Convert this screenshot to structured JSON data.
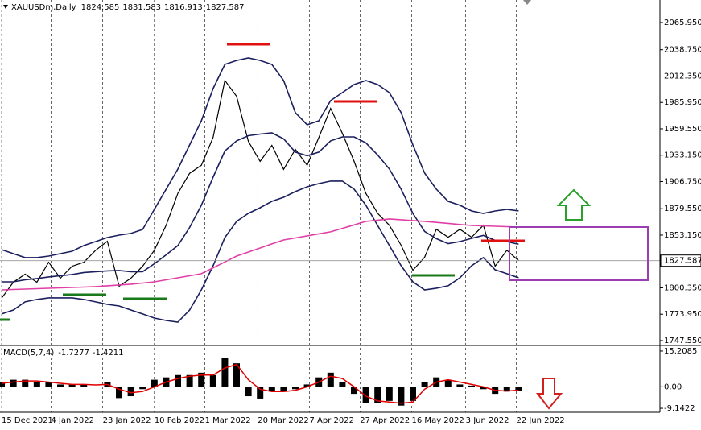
{
  "chart_data": [
    {
      "type": "line",
      "title": "XAUUSDm,Daily",
      "ohlc": [
        1824.585,
        1831.583,
        1816.913,
        1827.587
      ],
      "x": [
        0,
        1,
        2,
        3,
        4,
        5,
        6,
        7,
        8,
        9,
        10,
        11,
        12,
        13,
        14,
        15,
        16,
        17,
        18,
        19,
        20,
        21,
        22,
        23,
        24,
        25,
        26,
        27,
        28,
        29,
        30,
        31,
        32,
        33,
        34,
        35,
        36,
        37,
        38,
        39,
        40,
        41,
        42,
        43,
        44
      ],
      "xlim": [
        -0.14,
        56.03
      ],
      "xticks": [
        {
          "value": 0,
          "label": "15 Dec 2021"
        },
        {
          "value": 4.2,
          "label": "4 Jan 2022"
        },
        {
          "value": 8.6,
          "label": "23 Jan 2022"
        },
        {
          "value": 13,
          "label": "10 Feb 2022"
        },
        {
          "value": 17.3,
          "label": "1 Mar 2022"
        },
        {
          "value": 21.8,
          "label": "20 Mar 2022"
        },
        {
          "value": 26.2,
          "label": "7 Apr 2022"
        },
        {
          "value": 30.5,
          "label": "27 Apr 2022"
        },
        {
          "value": 34.9,
          "label": "16 May 2022"
        },
        {
          "value": 39.5,
          "label": "3 Jun 2022"
        },
        {
          "value": 43.8,
          "label": "22 Jun 2022"
        }
      ],
      "ylim": [
        1743.5,
        2088.5
      ],
      "yticks": [
        {
          "value": 2065.95,
          "label": "2065.950"
        },
        {
          "value": 2038.75,
          "label": "2038.750"
        },
        {
          "value": 2012.35,
          "label": "2012.350"
        },
        {
          "value": 1985.95,
          "label": "1985.950"
        },
        {
          "value": 1959.55,
          "label": "1959.550"
        },
        {
          "value": 1933.15,
          "label": "1933.150"
        },
        {
          "value": 1906.75,
          "label": "1906.750"
        },
        {
          "value": 1879.55,
          "label": "1879.550"
        },
        {
          "value": 1853.15,
          "label": "1853.150"
        },
        {
          "value": 1800.35,
          "label": "1800.350"
        },
        {
          "value": 1773.95,
          "label": "1773.950"
        },
        {
          "value": 1747.55,
          "label": "1747.550"
        }
      ],
      "grid": true,
      "series": [
        {
          "color": "#000000",
          "values": [
            1790,
            1806,
            1814,
            1806,
            1826,
            1810,
            1822,
            1826,
            1838,
            1847,
            1802,
            1810,
            1822,
            1838,
            1863,
            1895,
            1915,
            1923,
            1951,
            2008,
            1992,
            1947,
            1927,
            1943,
            1919,
            1939,
            1923,
            1951,
            1980,
            1955,
            1927,
            1895,
            1875,
            1863,
            1843,
            1818,
            1831,
            1859,
            1851,
            1859,
            1851,
            1863,
            1822,
            1838,
            1827.587
          ]
        },
        {
          "color": "#1b1f5e",
          "values": [
            1838.6,
            1834.6,
            1830.6,
            1830.6,
            1832.2,
            1834.6,
            1837.0,
            1842.7,
            1846.7,
            1850.7,
            1853.1,
            1854.8,
            1858.8,
            1878.9,
            1899.1,
            1919.2,
            1943.4,
            1967.6,
            1999.8,
            2024.0,
            2028.0,
            2030.5,
            2028.0,
            2024.0,
            2007.9,
            1975.7,
            1963.6,
            1967.6,
            1987.8,
            1995.8,
            2003.9,
            2007.9,
            2003.9,
            1995.8,
            1975.7,
            1943.4,
            1915.2,
            1899.1,
            1887.0,
            1883.0,
            1877.3,
            1874.9,
            1877.3,
            1878.9,
            1877.3
          ]
        },
        {
          "color": "#1b1f5e",
          "values": [
            1806.4,
            1806.4,
            1808.5,
            1809.7,
            1811.3,
            1812.5,
            1813.7,
            1815.7,
            1816.5,
            1817.3,
            1817.7,
            1816.5,
            1816.5,
            1824.5,
            1833.4,
            1842.7,
            1860.8,
            1883.0,
            1911.2,
            1937.4,
            1947.5,
            1952.7,
            1954.3,
            1955.5,
            1949.5,
            1936.2,
            1932.6,
            1936.2,
            1947.5,
            1951.5,
            1951.5,
            1945.5,
            1933.4,
            1919.3,
            1899.1,
            1874.9,
            1856.8,
            1849.6,
            1844.7,
            1846.7,
            1849.9,
            1852.8,
            1847.9,
            1846.7,
            1843.9
          ]
        },
        {
          "color": "#1b1f5e",
          "values": [
            1774.2,
            1778.2,
            1786.3,
            1788.7,
            1790.3,
            1790.3,
            1790.3,
            1788.7,
            1786.3,
            1783.8,
            1782.2,
            1778.2,
            1774.2,
            1770.1,
            1767.7,
            1766.1,
            1778.2,
            1798.3,
            1822.5,
            1850.7,
            1866.9,
            1874.9,
            1880.5,
            1887.0,
            1891.0,
            1896.7,
            1901.5,
            1904.7,
            1907.2,
            1907.2,
            1899.1,
            1883.0,
            1862.8,
            1842.7,
            1822.5,
            1806.4,
            1798.3,
            1800.0,
            1802.4,
            1810.4,
            1822.5,
            1830.6,
            1818.5,
            1814.5,
            1810.4
          ]
        },
        {
          "color": "#e03fa6",
          "values": [
            1798.3,
            1798.7,
            1799.1,
            1799.5,
            1799.9,
            1800.3,
            1800.7,
            1801.1,
            1801.6,
            1802.4,
            1803.2,
            1804.0,
            1805.2,
            1806.4,
            1808.4,
            1810.4,
            1812.4,
            1814.5,
            1820.4,
            1826.3,
            1832.2,
            1836.2,
            1840.2,
            1844.3,
            1848.3,
            1850.3,
            1852.4,
            1854.4,
            1856.4,
            1859.9,
            1863.4,
            1866.9,
            1868.1,
            1869.3,
            1868.5,
            1867.7,
            1866.9,
            1865.9,
            1864.9,
            1863.8,
            1862.8,
            1862.4,
            1862.0,
            1861.6,
            1861.2
          ]
        }
      ]
    },
    {
      "type": "macd",
      "title": "MACD(5,7,4)",
      "x": [
        0,
        1,
        2,
        3,
        4,
        5,
        6,
        7,
        8,
        9,
        10,
        11,
        12,
        13,
        14,
        15,
        16,
        17,
        18,
        19,
        20,
        21,
        22,
        23,
        24,
        25,
        26,
        27,
        28,
        29,
        30,
        31,
        32,
        33,
        34,
        35,
        36,
        37,
        38,
        39,
        40,
        41,
        42,
        43,
        44
      ],
      "xlim": [
        -0.14,
        56.03
      ],
      "ylim": [
        -10.84,
        17.25
      ],
      "yticks": [
        15.2085,
        {
          "value": 0,
          "label": "0.00"
        },
        -9.1422
      ],
      "histogram": {
        "color": "#000000",
        "values": [
          2,
          3,
          3,
          2,
          2,
          1,
          1,
          1,
          0,
          2,
          -4.8,
          -4,
          -1,
          3,
          4,
          5,
          5,
          6,
          5,
          12.2,
          10,
          -4,
          -5,
          -2,
          -2,
          -1,
          1,
          4,
          6,
          2,
          -3,
          -7,
          -7,
          -6,
          -8,
          -6,
          2,
          4,
          3,
          1,
          0.5,
          -1,
          -3,
          -2,
          -1.7277
        ]
      },
      "signal": {
        "color": "#e00000",
        "values": [
          1.5,
          2,
          2.5,
          2.5,
          2,
          1.5,
          1,
          1,
          0.8,
          1,
          -1,
          -2.5,
          -2,
          0,
          2,
          3.5,
          4.5,
          5,
          5,
          8,
          9.5,
          3,
          -1,
          -2,
          -2,
          -1.5,
          0,
          2,
          4.5,
          3.5,
          0,
          -4,
          -6,
          -6.5,
          -7,
          -6.5,
          -1,
          2,
          3,
          2,
          1,
          0,
          -1.5,
          -1.8,
          -1.4211
        ]
      }
    }
  ]
}
